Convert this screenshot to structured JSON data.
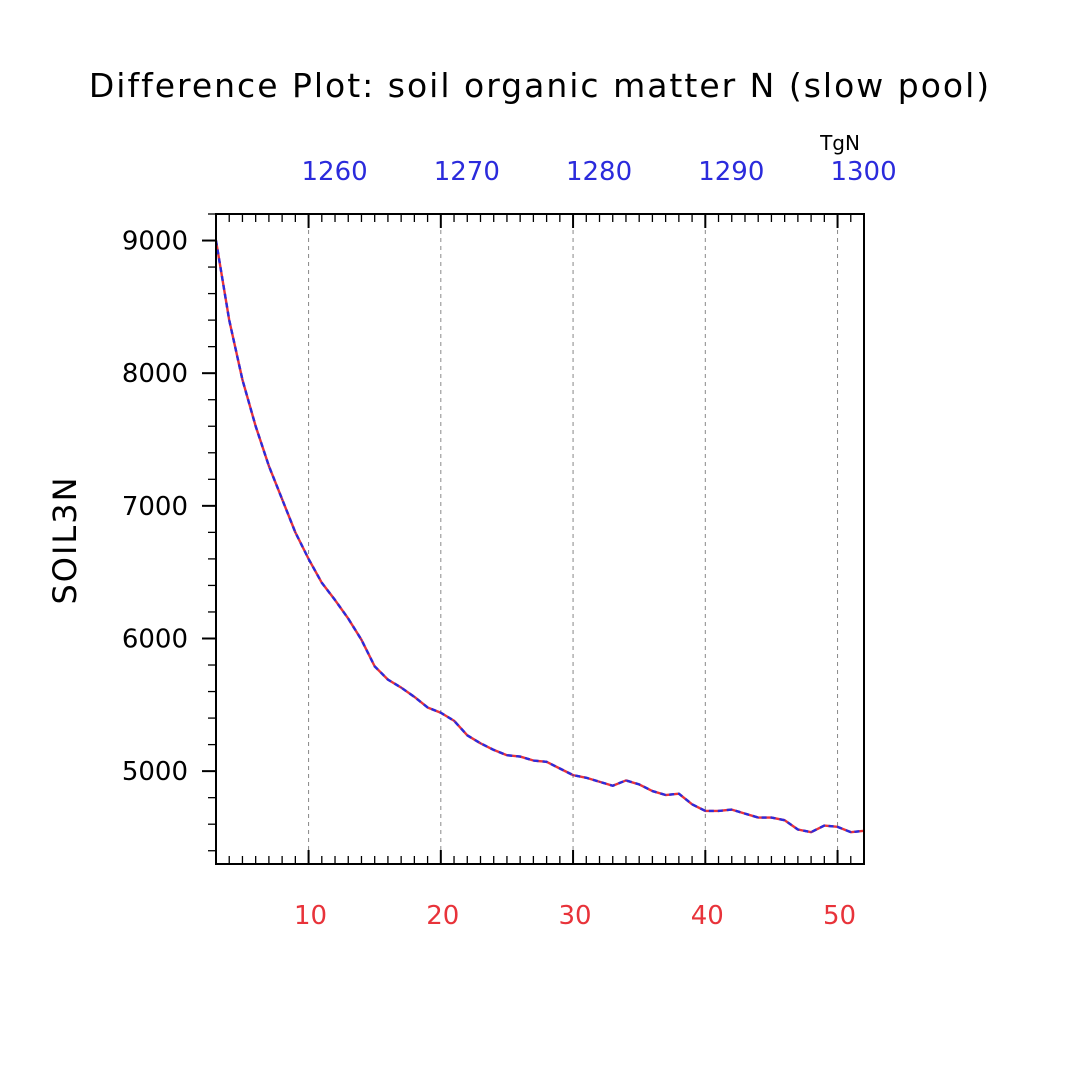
{
  "chart_data": {
    "type": "line",
    "title": "Difference Plot: soil organic matter N (slow pool)",
    "ylabel": "SOIL3N",
    "top_axis_unit": "TgN",
    "xlim": [
      3,
      52
    ],
    "ylim": [
      4300,
      9200
    ],
    "x_ticks_bottom": [
      10,
      20,
      30,
      40,
      50
    ],
    "x_tick_labels_bottom": [
      "10",
      "20",
      "30",
      "40",
      "50"
    ],
    "x_ticks_top": [
      10,
      20,
      30,
      40,
      50
    ],
    "x_tick_labels_top": [
      "1260",
      "1270",
      "1280",
      "1290",
      "1300"
    ],
    "y_ticks": [
      5000,
      6000,
      7000,
      8000,
      9000
    ],
    "y_tick_labels": [
      "5000",
      "6000",
      "7000",
      "8000",
      "9000"
    ],
    "grid": "vertical-dashed",
    "colors": {
      "series_primary": "#e8333a",
      "series_overlay": "#2b2bdc",
      "bottom_ticks": "#e8333a",
      "top_ticks": "#2b2bdc",
      "grid": "#888888"
    },
    "x": [
      3,
      4,
      5,
      6,
      7,
      8,
      9,
      10,
      11,
      12,
      13,
      14,
      15,
      16,
      17,
      18,
      19,
      20,
      21,
      22,
      23,
      24,
      25,
      26,
      27,
      28,
      29,
      30,
      31,
      32,
      33,
      34,
      35,
      36,
      37,
      38,
      39,
      40,
      41,
      42,
      43,
      44,
      45,
      46,
      47,
      48,
      49,
      50,
      51,
      52
    ],
    "series": [
      {
        "values": [
          9000,
          8400,
          7950,
          7600,
          7300,
          7050,
          6800,
          6600,
          6420,
          6290,
          6150,
          5990,
          5790,
          5690,
          5630,
          5560,
          5480,
          5440,
          5380,
          5270,
          5210,
          5160,
          5120,
          5110,
          5080,
          5070,
          5020,
          4970,
          4950,
          4920,
          4890,
          4930,
          4900,
          4850,
          4820,
          4830,
          4750,
          4700,
          4700,
          4710,
          4680,
          4650,
          4650,
          4630,
          4560,
          4540,
          4590,
          4580,
          4540,
          4550
        ]
      }
    ]
  }
}
